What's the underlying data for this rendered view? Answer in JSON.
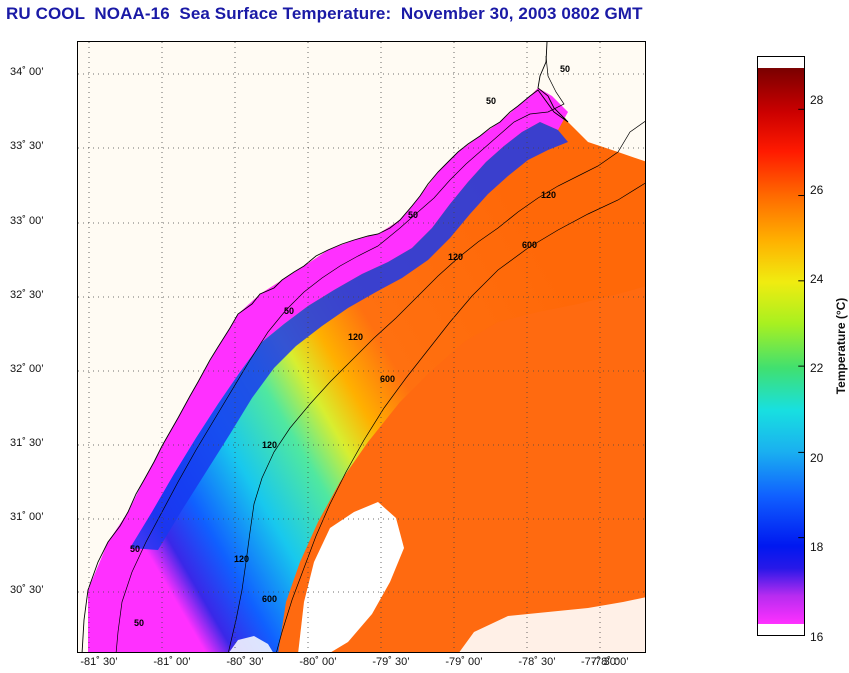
{
  "title": "RU COOL  NOAA-16  Sea Surface Temperature:  November 30, 2003 0802 GMT",
  "map": {
    "latitude_labels": [
      "34˚ 00’",
      "33˚ 30’",
      "33˚ 00’",
      "32˚ 30’",
      "32˚ 00’",
      "31˚ 30’",
      "31˚ 00’",
      "30˚ 30’"
    ],
    "longitude_labels": [
      "-81˚ 30’",
      "-81˚ 00’",
      "-80˚ 30’",
      "-80˚ 00’",
      "-79˚ 30’",
      "-79˚ 00’",
      "-78˚ 30’",
      "-78˚ 00’",
      "-77˚ 30’"
    ],
    "isobath_labels": [
      "50",
      "50",
      "50",
      "50",
      "50",
      "50",
      "120",
      "120",
      "120",
      "120",
      "120",
      "600",
      "600",
      "600"
    ]
  },
  "colorbar": {
    "label": "Temperature (°C)",
    "ticks": [
      "28",
      "26",
      "24",
      "22",
      "20",
      "18",
      "16"
    ],
    "min": 16,
    "max": 29,
    "colors": {
      "t29": "#7a0000",
      "t28": "#cc0000",
      "t27": "#ff1a00",
      "t26": "#ff6a00",
      "t25": "#ffb000",
      "t24": "#f0ec10",
      "t23": "#a8f020",
      "t22": "#40e070",
      "t21": "#18e0e0",
      "t20": "#1ab0f0",
      "t19": "#1060ff",
      "t18": "#0018f0",
      "t17": "#8a2ae0",
      "t16": "#ff30ff"
    }
  }
}
